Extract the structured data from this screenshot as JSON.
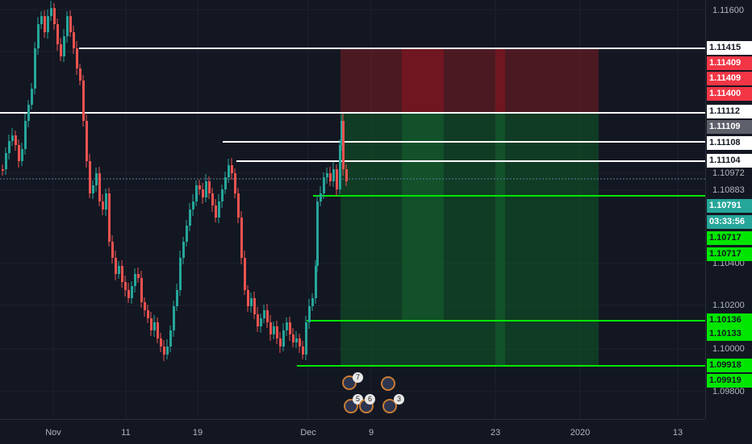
{
  "price_axis": {
    "ticks": [
      "1.11600",
      "1.10972",
      "1.10883",
      "1.10400",
      "1.10200",
      "1.10000",
      "1.09800"
    ]
  },
  "price_tags": [
    {
      "label": "1.11415",
      "bg": "#ffffff",
      "fg": "#131722"
    },
    {
      "label": "1.11409",
      "bg": "#f23645",
      "fg": "#ffffff"
    },
    {
      "label": "1.11409",
      "bg": "#f23645",
      "fg": "#ffffff"
    },
    {
      "label": "1.11400",
      "bg": "#f23645",
      "fg": "#ffffff"
    },
    {
      "label": "1.11112",
      "bg": "#ffffff",
      "fg": "#131722"
    },
    {
      "label": "1.11109",
      "bg": "#5d606b",
      "fg": "#ffffff"
    },
    {
      "label": "1.11108",
      "bg": "#ffffff",
      "fg": "#131722"
    },
    {
      "label": "1.11104",
      "bg": "#ffffff",
      "fg": "#131722"
    },
    {
      "label": "1.10791",
      "bg": "#26a69a",
      "fg": "#ffffff"
    },
    {
      "label": "03:33:56",
      "bg": "#26a69a",
      "fg": "#ffffff"
    },
    {
      "label": "1.10717",
      "bg": "#00e600",
      "fg": "#131722"
    },
    {
      "label": "1.10717",
      "bg": "#00e600",
      "fg": "#131722"
    },
    {
      "label": "1.10136",
      "bg": "#00e600",
      "fg": "#131722"
    },
    {
      "label": "1.10133",
      "bg": "#00e600",
      "fg": "#131722"
    },
    {
      "label": "1.09918",
      "bg": "#00e600",
      "fg": "#131722"
    },
    {
      "label": "1.09919",
      "bg": "#00e600",
      "fg": "#131722"
    }
  ],
  "time_axis": {
    "labels": [
      "Nov",
      "11",
      "19",
      "Dec",
      "9",
      "23",
      "2020",
      "13"
    ]
  },
  "events": [
    "7",
    "5",
    "6",
    "3"
  ],
  "colors": {
    "background": "#131722",
    "candle_up": "#26a69a",
    "candle_down": "#ef5350",
    "stop_zone": "#7a1c22",
    "target_zone": "#0f5a26",
    "level_green": "#00e600",
    "level_white": "#ffffff"
  }
}
